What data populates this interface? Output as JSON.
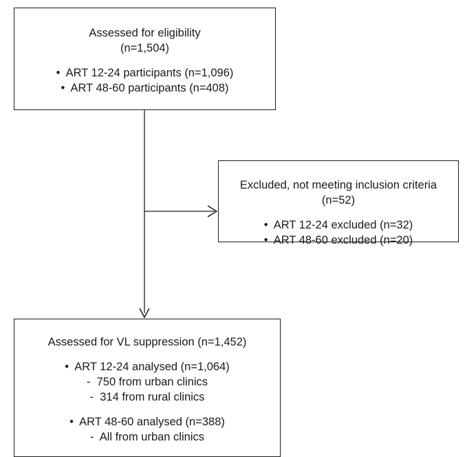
{
  "eligibility": {
    "title": "Assessed for eligibility",
    "count": "(n=1,504)",
    "bullets": [
      "ART 12-24 participants (n=1,096)",
      "ART 48-60 participants (n=408)"
    ]
  },
  "excluded": {
    "title": "Excluded, not meeting inclusion criteria",
    "count": "(n=52)",
    "bullets": [
      "ART 12-24 excluded (n=32)",
      "ART 48-60 excluded (n=20)"
    ]
  },
  "vl": {
    "title": "Assessed for VL suppression (n=1,452)",
    "group1": {
      "label": "ART 12-24 analysed (n=1,064)",
      "sub": [
        "750 from urban clinics",
        "314 from rural clinics"
      ]
    },
    "group2": {
      "label": "ART 48-60 analysed (n=388)",
      "sub": [
        "All from urban clinics"
      ]
    }
  },
  "symbols": {
    "bullet": "•",
    "dash": "-"
  }
}
